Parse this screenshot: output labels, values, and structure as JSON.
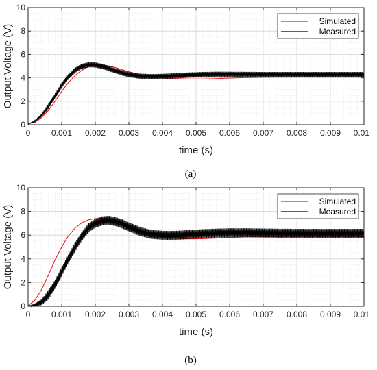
{
  "colors": {
    "simulated": "#e8191b",
    "measured": "#000000",
    "grid_major": "#d4d4d4",
    "grid_minor": "#e6e6e6",
    "axis": "#262626"
  },
  "chart_data": [
    {
      "type": "line",
      "caption": "(a)",
      "xlabel": "time (s)",
      "ylabel": "Output Voltage (V)",
      "xlim": [
        0,
        0.01
      ],
      "ylim": [
        0,
        10
      ],
      "xticks": [
        0,
        0.001,
        0.002,
        0.003,
        0.004,
        0.005,
        0.006,
        0.007,
        0.008,
        0.009,
        0.01
      ],
      "xtick_labels": [
        "0",
        "0.001",
        "0.002",
        "0.003",
        "0.004",
        "0.005",
        "0.006",
        "0.007",
        "0.008",
        "0.009",
        "0.01"
      ],
      "yticks": [
        0,
        2,
        4,
        6,
        8,
        10
      ],
      "ytick_labels": [
        "0",
        "2",
        "4",
        "6",
        "8",
        "10"
      ],
      "grid": true,
      "minor_grid": true,
      "legend_position": "top-right",
      "series": [
        {
          "name": "Simulated",
          "color": "#e8191b",
          "x": [
            0,
            0.0002,
            0.0004,
            0.0006,
            0.0008,
            0.001,
            0.0012,
            0.0014,
            0.0016,
            0.0018,
            0.002,
            0.0022,
            0.0024,
            0.0026,
            0.0028,
            0.003,
            0.0033,
            0.0036,
            0.004,
            0.0044,
            0.0048,
            0.0052,
            0.0056,
            0.006,
            0.0065,
            0.007,
            0.0075,
            0.008,
            0.0085,
            0.009,
            0.0095,
            0.01
          ],
          "y": [
            0.1,
            0.2,
            0.6,
            1.2,
            2.0,
            2.85,
            3.6,
            4.2,
            4.65,
            4.95,
            5.08,
            5.1,
            5.02,
            4.88,
            4.7,
            4.52,
            4.3,
            4.12,
            4.0,
            3.93,
            3.9,
            3.9,
            3.93,
            3.98,
            4.02,
            4.05,
            4.06,
            4.06,
            4.06,
            4.06,
            4.06,
            4.06
          ]
        },
        {
          "name": "Measured",
          "color": "#000000",
          "ripple": 0.22,
          "x": [
            0,
            0.0002,
            0.0004,
            0.0006,
            0.0008,
            0.001,
            0.0012,
            0.0014,
            0.0016,
            0.0018,
            0.002,
            0.0022,
            0.0024,
            0.0026,
            0.0028,
            0.003,
            0.0033,
            0.0036,
            0.004,
            0.0044,
            0.0048,
            0.0052,
            0.0056,
            0.006,
            0.0065,
            0.007,
            0.0075,
            0.008,
            0.0085,
            0.009,
            0.0095,
            0.01
          ],
          "y": [
            0.05,
            0.3,
            0.8,
            1.55,
            2.45,
            3.35,
            4.1,
            4.65,
            4.98,
            5.12,
            5.1,
            4.98,
            4.8,
            4.6,
            4.42,
            4.28,
            4.15,
            4.1,
            4.12,
            4.18,
            4.24,
            4.28,
            4.3,
            4.3,
            4.29,
            4.28,
            4.28,
            4.28,
            4.28,
            4.28,
            4.28,
            4.28
          ]
        }
      ]
    },
    {
      "type": "line",
      "caption": "(b)",
      "xlabel": "time (s)",
      "ylabel": "Output Voltage (V)",
      "xlim": [
        0,
        0.01
      ],
      "ylim": [
        0,
        10
      ],
      "xticks": [
        0,
        0.001,
        0.002,
        0.003,
        0.004,
        0.005,
        0.006,
        0.007,
        0.008,
        0.009,
        0.01
      ],
      "xtick_labels": [
        "0",
        "0.001",
        "0.002",
        "0.003",
        "0.004",
        "0.005",
        "0.006",
        "0.007",
        "0.008",
        "0.009",
        "0.01"
      ],
      "yticks": [
        0,
        2,
        4,
        6,
        8,
        10
      ],
      "ytick_labels": [
        "0",
        "2",
        "4",
        "6",
        "8",
        "10"
      ],
      "grid": true,
      "minor_grid": true,
      "legend_position": "top-right",
      "series": [
        {
          "name": "Simulated",
          "color": "#e8191b",
          "x": [
            0,
            0.0002,
            0.0004,
            0.0006,
            0.0008,
            0.001,
            0.0012,
            0.0014,
            0.0016,
            0.0018,
            0.002,
            0.0022,
            0.0024,
            0.0026,
            0.0028,
            0.003,
            0.0033,
            0.0036,
            0.004,
            0.0044,
            0.0048,
            0.0052,
            0.0056,
            0.006,
            0.0065,
            0.007,
            0.0075,
            0.008,
            0.0085,
            0.009,
            0.0095,
            0.01
          ],
          "y": [
            0.05,
            0.5,
            1.4,
            2.6,
            3.9,
            5.0,
            5.95,
            6.6,
            7.05,
            7.3,
            7.4,
            7.42,
            7.35,
            7.2,
            7.0,
            6.75,
            6.4,
            6.1,
            5.85,
            5.72,
            5.68,
            5.7,
            5.75,
            5.8,
            5.85,
            5.87,
            5.88,
            5.88,
            5.88,
            5.88,
            5.88,
            5.88
          ]
        },
        {
          "name": "Measured",
          "color": "#000000",
          "ripple": 0.38,
          "x": [
            0,
            0.0002,
            0.0004,
            0.0006,
            0.0008,
            0.001,
            0.0012,
            0.0014,
            0.0016,
            0.0018,
            0.002,
            0.0022,
            0.0024,
            0.0026,
            0.0028,
            0.003,
            0.0033,
            0.0036,
            0.004,
            0.0044,
            0.0048,
            0.0052,
            0.0056,
            0.006,
            0.0065,
            0.007,
            0.0075,
            0.008,
            0.0085,
            0.009,
            0.0095,
            0.01
          ],
          "y": [
            0.0,
            0.1,
            0.35,
            0.95,
            1.85,
            2.9,
            4.0,
            5.0,
            5.9,
            6.6,
            7.0,
            7.2,
            7.25,
            7.15,
            6.95,
            6.7,
            6.35,
            6.1,
            5.98,
            5.98,
            6.05,
            6.12,
            6.17,
            6.2,
            6.2,
            6.18,
            6.16,
            6.15,
            6.15,
            6.15,
            6.15,
            6.15
          ]
        }
      ]
    }
  ]
}
